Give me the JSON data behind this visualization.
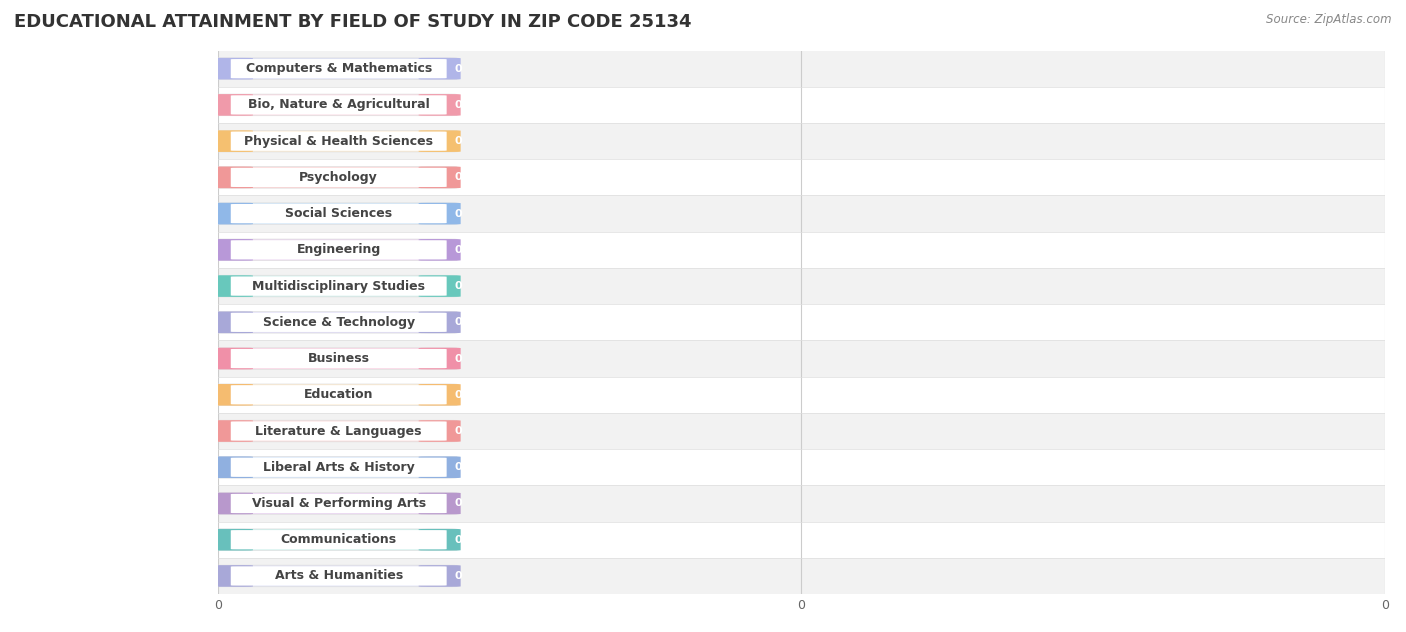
{
  "title": "EDUCATIONAL ATTAINMENT BY FIELD OF STUDY IN ZIP CODE 25134",
  "source": "Source: ZipAtlas.com",
  "categories": [
    "Computers & Mathematics",
    "Bio, Nature & Agricultural",
    "Physical & Health Sciences",
    "Psychology",
    "Social Sciences",
    "Engineering",
    "Multidisciplinary Studies",
    "Science & Technology",
    "Business",
    "Education",
    "Literature & Languages",
    "Liberal Arts & History",
    "Visual & Performing Arts",
    "Communications",
    "Arts & Humanities"
  ],
  "values": [
    0,
    0,
    0,
    0,
    0,
    0,
    0,
    0,
    0,
    0,
    0,
    0,
    0,
    0,
    0
  ],
  "bar_colors": [
    "#b0b5e8",
    "#f09aaa",
    "#f5c070",
    "#f09898",
    "#90b8e8",
    "#b898d8",
    "#68c8bc",
    "#a8a8d8",
    "#f090a8",
    "#f5bc70",
    "#f09898",
    "#90b0e0",
    "#b898cc",
    "#68c0bc",
    "#a8a8d8"
  ],
  "bg_colors": [
    "#dde0f5",
    "#fad5e0",
    "#fdebd0",
    "#fad5d5",
    "#d5e8f8",
    "#ead5f0",
    "#cef0ec",
    "#e0ddf5",
    "#fad5e5",
    "#fdebd0",
    "#fad5d5",
    "#d5e5f8",
    "#ead5f0",
    "#cef0ec",
    "#dde0f5"
  ],
  "row_bg_odd": "#f2f2f2",
  "row_bg_even": "#ffffff",
  "title_fontsize": 13,
  "label_fontsize": 9,
  "value_fontsize": 8
}
